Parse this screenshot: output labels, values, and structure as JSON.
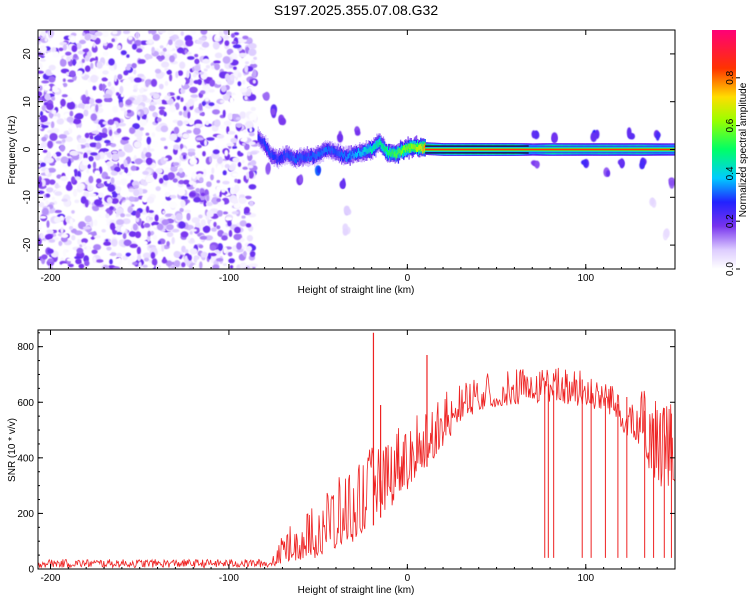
{
  "title": "S197.2025.355.07.08.G32",
  "chart_data": [
    {
      "type": "heatmap",
      "title": "S197.2025.355.07.08.G32",
      "xlabel": "Height of straight line (km)",
      "ylabel": "Frequency (Hz)",
      "xlim": [
        -207,
        150
      ],
      "ylim": [
        -25,
        25
      ],
      "xticks": [
        -200,
        -100,
        0,
        100
      ],
      "yticks": [
        -20,
        -10,
        0,
        10,
        20
      ],
      "colorbar": {
        "label": "Normalized spectral amplitude",
        "range": [
          0,
          1
        ],
        "ticks": [
          0.0,
          0.2,
          0.4,
          0.6,
          0.8
        ],
        "colormap": "white-purple-blue-cyan-green-yellow-red-magenta"
      },
      "noise_region_km": [
        -207,
        -85
      ],
      "noise_amplitude_range": [
        0.0,
        0.2
      ],
      "signal_track": [
        {
          "x": -84,
          "y": 2.5,
          "amp": 0.25
        },
        {
          "x": -80,
          "y": 1.0,
          "amp": 0.3
        },
        {
          "x": -77,
          "y": -1.0,
          "amp": 0.3
        },
        {
          "x": -73,
          "y": -2.0,
          "amp": 0.28
        },
        {
          "x": -68,
          "y": -1.0,
          "amp": 0.3
        },
        {
          "x": -63,
          "y": -2.0,
          "amp": 0.32
        },
        {
          "x": -58,
          "y": -1.5,
          "amp": 0.3
        },
        {
          "x": -52,
          "y": -1.5,
          "amp": 0.32
        },
        {
          "x": -46,
          "y": 0.0,
          "amp": 0.33
        },
        {
          "x": -40,
          "y": -0.5,
          "amp": 0.3
        },
        {
          "x": -35,
          "y": -1.5,
          "amp": 0.34
        },
        {
          "x": -30,
          "y": -1.0,
          "amp": 0.36
        },
        {
          "x": -25,
          "y": -0.5,
          "amp": 0.4
        },
        {
          "x": -20,
          "y": 0.0,
          "amp": 0.45
        },
        {
          "x": -16,
          "y": 1.5,
          "amp": 0.48
        },
        {
          "x": -12,
          "y": -0.5,
          "amp": 0.5
        },
        {
          "x": -7,
          "y": -1.0,
          "amp": 0.55
        },
        {
          "x": -2,
          "y": 0.0,
          "amp": 0.6
        },
        {
          "x": 2,
          "y": 0.5,
          "amp": 0.62
        },
        {
          "x": 6,
          "y": 0.5,
          "amp": 0.65
        },
        {
          "x": 10,
          "y": 0.2,
          "amp": 0.8
        },
        {
          "x": 20,
          "y": 0.0,
          "amp": 0.9
        },
        {
          "x": 40,
          "y": 0.0,
          "amp": 0.95
        },
        {
          "x": 60,
          "y": 0.0,
          "amp": 0.95
        },
        {
          "x": 70,
          "y": 0.0,
          "amp": 0.6
        },
        {
          "x": 80,
          "y": 0.0,
          "amp": 0.8
        },
        {
          "x": 90,
          "y": 0.0,
          "amp": 0.75
        },
        {
          "x": 100,
          "y": 0.0,
          "amp": 0.7
        },
        {
          "x": 110,
          "y": 0.0,
          "amp": 0.75
        },
        {
          "x": 120,
          "y": 0.0,
          "amp": 0.7
        },
        {
          "x": 130,
          "y": 0.0,
          "amp": 0.75
        },
        {
          "x": 140,
          "y": 0.0,
          "amp": 0.65
        },
        {
          "x": 150,
          "y": 0.0,
          "amp": 0.6
        }
      ],
      "side_blobs": [
        {
          "x": -80,
          "y": 11,
          "amp": 0.15
        },
        {
          "x": -75,
          "y": 8,
          "amp": 0.2
        },
        {
          "x": -70,
          "y": 6,
          "amp": 0.2
        },
        {
          "x": -78,
          "y": -4,
          "amp": 0.18
        },
        {
          "x": -60,
          "y": -6,
          "amp": 0.18
        },
        {
          "x": -50,
          "y": -4.5,
          "amp": 0.3
        },
        {
          "x": -38,
          "y": 3,
          "amp": 0.2
        },
        {
          "x": -36,
          "y": -7,
          "amp": 0.2
        },
        {
          "x": -34,
          "y": -17,
          "amp": 0.06
        },
        {
          "x": -33,
          "y": -13,
          "amp": 0.08
        },
        {
          "x": -28,
          "y": 4,
          "amp": 0.2
        },
        {
          "x": 72,
          "y": 3,
          "amp": 0.25
        },
        {
          "x": 72,
          "y": -3,
          "amp": 0.2
        },
        {
          "x": 82,
          "y": 2.5,
          "amp": 0.22
        },
        {
          "x": 100,
          "y": -3,
          "amp": 0.25
        },
        {
          "x": 105,
          "y": 3,
          "amp": 0.25
        },
        {
          "x": 112,
          "y": -5,
          "amp": 0.18
        },
        {
          "x": 120,
          "y": -3,
          "amp": 0.2
        },
        {
          "x": 125,
          "y": 3,
          "amp": 0.25
        },
        {
          "x": 132,
          "y": -3,
          "amp": 0.22
        },
        {
          "x": 140,
          "y": 3,
          "amp": 0.22
        },
        {
          "x": 148,
          "y": -7,
          "amp": 0.15
        },
        {
          "x": 145,
          "y": -18,
          "amp": 0.05
        },
        {
          "x": 138,
          "y": -11,
          "amp": 0.06
        }
      ]
    },
    {
      "type": "line",
      "xlabel": "Height of straight line (km)",
      "ylabel": "SNR (10 * v/v)",
      "xlim": [
        -207,
        150
      ],
      "ylim": [
        0,
        860
      ],
      "xticks": [
        -200,
        -100,
        0,
        100
      ],
      "yticks": [
        0,
        200,
        400,
        600,
        800
      ],
      "series_color": "#ee2222",
      "envelope": [
        {
          "x": -207,
          "lo": 5,
          "hi": 35
        },
        {
          "x": -80,
          "lo": 5,
          "hi": 35
        },
        {
          "x": -75,
          "lo": 10,
          "hi": 60
        },
        {
          "x": -70,
          "lo": 20,
          "hi": 120
        },
        {
          "x": -60,
          "lo": 30,
          "hi": 200
        },
        {
          "x": -50,
          "lo": 40,
          "hi": 250
        },
        {
          "x": -40,
          "lo": 60,
          "hi": 320
        },
        {
          "x": -30,
          "lo": 100,
          "hi": 380
        },
        {
          "x": -20,
          "lo": 150,
          "hi": 440
        },
        {
          "x": -10,
          "lo": 220,
          "hi": 500
        },
        {
          "x": 0,
          "lo": 280,
          "hi": 540
        },
        {
          "x": 10,
          "lo": 360,
          "hi": 580
        },
        {
          "x": 20,
          "lo": 440,
          "hi": 630
        },
        {
          "x": 30,
          "lo": 530,
          "hi": 670
        },
        {
          "x": 40,
          "lo": 570,
          "hi": 700
        },
        {
          "x": 60,
          "lo": 590,
          "hi": 720
        },
        {
          "x": 80,
          "lo": 600,
          "hi": 730
        },
        {
          "x": 100,
          "lo": 580,
          "hi": 720
        },
        {
          "x": 110,
          "lo": 560,
          "hi": 700
        },
        {
          "x": 120,
          "lo": 500,
          "hi": 680
        },
        {
          "x": 130,
          "lo": 420,
          "hi": 650
        },
        {
          "x": 140,
          "lo": 300,
          "hi": 620
        },
        {
          "x": 150,
          "lo": 250,
          "hi": 600
        }
      ],
      "spikes": [
        {
          "x": -19,
          "y": 850
        },
        {
          "x": -15,
          "y": 590
        },
        {
          "x": 11,
          "y": 770
        }
      ],
      "dropouts": [
        {
          "x": 77,
          "y": 40
        },
        {
          "x": 79,
          "y": 40
        },
        {
          "x": 82,
          "y": 40
        },
        {
          "x": 98,
          "y": 40
        },
        {
          "x": 103,
          "y": 40
        },
        {
          "x": 111,
          "y": 40
        },
        {
          "x": 118,
          "y": 40
        },
        {
          "x": 123,
          "y": 40
        },
        {
          "x": 133,
          "y": 40
        },
        {
          "x": 138,
          "y": 40
        },
        {
          "x": 144,
          "y": 40
        },
        {
          "x": 148,
          "y": 40
        }
      ]
    }
  ]
}
